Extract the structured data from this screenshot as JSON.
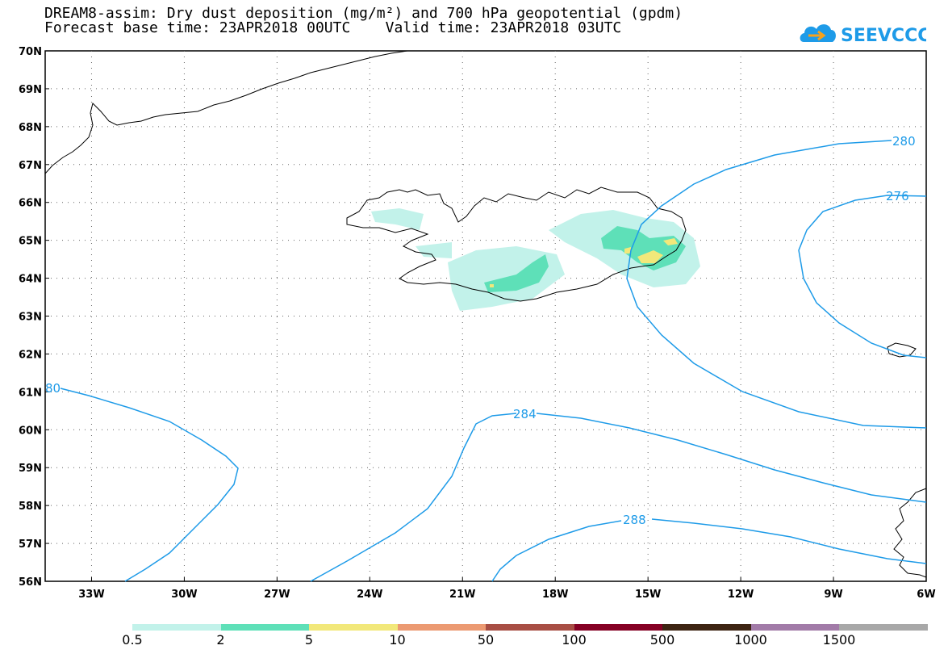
{
  "title_line1": "DREAM8-assim: Dry dust deposition (mg/m²) and 700 hPa geopotential (gpdm)",
  "title_line2": "Forecast base time: 23APR2018 00UTC    Valid time: 23APR2018 03UTC",
  "logo_text": "SEEVCCC",
  "lat_labels": [
    "70N",
    "69N",
    "68N",
    "67N",
    "66N",
    "65N",
    "64N",
    "63N",
    "62N",
    "61N",
    "60N",
    "59N",
    "58N",
    "57N",
    "56N"
  ],
  "lon_labels": [
    "33W",
    "30W",
    "27W",
    "24W",
    "21W",
    "18W",
    "15W",
    "12W",
    "9W",
    "6W"
  ],
  "contour_labels": [
    "280",
    "276",
    "284",
    "288",
    "80"
  ],
  "colorbar": {
    "labels": [
      "0.5",
      "2",
      "5",
      "10",
      "50",
      "100",
      "500",
      "1000",
      "1500"
    ],
    "colors": [
      "#c2f2ea",
      "#5ee0b8",
      "#f2e87a",
      "#ec9a72",
      "#a84e44",
      "#850024",
      "#3d2412",
      "#a27ba8",
      "#a8a8a8"
    ]
  },
  "colors": {
    "contour": "#1e9be8",
    "land_outline": "#000000",
    "grid": "#666666"
  }
}
